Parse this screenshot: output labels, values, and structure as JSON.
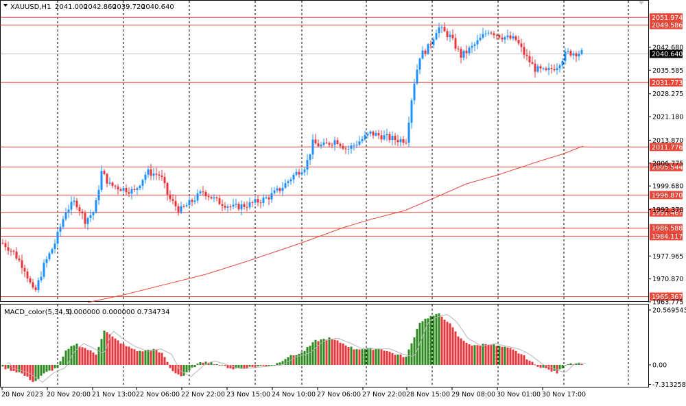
{
  "symbol_info": {
    "symbol": "XAUUSD,H1",
    "open": "2041.000",
    "high": "2042.860",
    "low": "2039.720",
    "close": "2040.640"
  },
  "indicator_info": {
    "name": "MACD_color(5,34,5)",
    "values": "0.000000 0.000000 0.734734"
  },
  "price_axis": {
    "ticks": [
      "2042.680",
      "2035.585",
      "2028.275",
      "2021.180",
      "2013.870",
      "2006.775",
      "1999.680",
      "1992.370",
      "1977.965",
      "1970.870",
      "1963.775"
    ]
  },
  "current_price": "2040.640",
  "horizontal_levels": [
    {
      "price": "2051.974"
    },
    {
      "price": "2049.586"
    },
    {
      "price": "2031.773"
    },
    {
      "price": "2011.776"
    },
    {
      "price": "2005.544"
    },
    {
      "price": "1996.870"
    },
    {
      "price": "1991.467"
    },
    {
      "price": "1986.588"
    },
    {
      "price": "1984.117"
    },
    {
      "price": "1965.367"
    }
  ],
  "macd_axis": {
    "ticks": [
      "20.569543",
      "0.00",
      "-7.313258"
    ]
  },
  "time_axis": {
    "labels": [
      "20 Nov 2023",
      "20 Nov 20:00",
      "21 Nov 13:00",
      "22 Nov 06:00",
      "22 Nov 22:00",
      "23 Nov 15:00",
      "24 Nov 10:00",
      "27 Nov 06:00",
      "27 Nov 22:00",
      "28 Nov 15:00",
      "29 Nov 08:00",
      "30 Nov 01:00",
      "30 Nov 17:00"
    ]
  },
  "colors": {
    "bull": "#1e90ff",
    "bear": "#e8343a",
    "level_line": "#e8483a",
    "level_box": "#e8483a",
    "current_box": "#000000",
    "ma_line": "#e8483a",
    "macd_up": "#2e8b22",
    "macd_down": "#e8343a",
    "signal": "#b4b4b4",
    "grid": "#000000"
  },
  "chart_data": {
    "type": "candlestick",
    "title": "XAUUSD,H1",
    "x": [
      "20 Nov 2023",
      "20 Nov 20:00",
      "21 Nov 13:00",
      "22 Nov 06:00",
      "22 Nov 22:00",
      "23 Nov 15:00",
      "24 Nov 10:00",
      "27 Nov 06:00",
      "27 Nov 22:00",
      "28 Nov 15:00",
      "29 Nov 08:00",
      "30 Nov 01:00",
      "30 Nov 17:00"
    ],
    "close_trend": [
      1982,
      1989,
      1998,
      1996,
      1993,
      1993,
      2001,
      2013,
      2015,
      2040,
      2046,
      2042,
      2040
    ],
    "ylim": [
      1963.0,
      2055.0
    ],
    "macd_ylim": [
      -8.0,
      21.0
    ]
  }
}
